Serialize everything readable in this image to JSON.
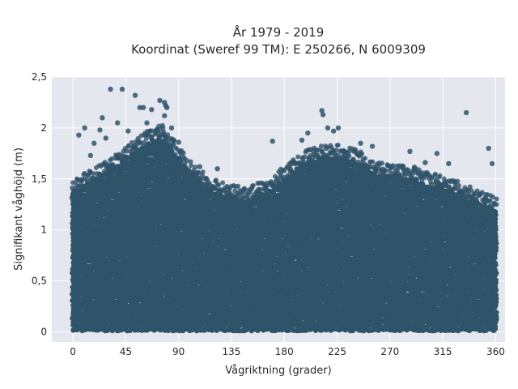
{
  "chart_data": {
    "type": "scatter",
    "title": "År 1979 - 2019",
    "subtitle": "Koordinat (Sweref 99 TM): E 250266, N 6009309",
    "xlabel": "Vågriktning (grader)",
    "ylabel": "Signifikant våghöjd (m)",
    "xlim": [
      -18,
      368
    ],
    "ylim": [
      -0.1,
      2.5
    ],
    "xticks": [
      0,
      45,
      90,
      135,
      180,
      225,
      270,
      315,
      360
    ],
    "xtick_labels": [
      "0",
      "45",
      "90",
      "135",
      "180",
      "225",
      "270",
      "315",
      "360"
    ],
    "yticks": [
      0,
      0.5,
      1,
      1.5,
      2,
      2.5
    ],
    "ytick_labels": [
      "0",
      "0,5",
      "1",
      "1,5",
      "2",
      "2,5"
    ],
    "grid": true,
    "legend": "none",
    "colors": {
      "background": "#e5e7ee",
      "grid": "#ffffff",
      "marker": "#2f5369"
    },
    "dense_envelope": {
      "x": [
        0,
        10,
        20,
        30,
        40,
        50,
        60,
        70,
        75,
        80,
        90,
        100,
        110,
        120,
        135,
        150,
        160,
        170,
        180,
        190,
        200,
        210,
        225,
        240,
        250,
        260,
        270,
        280,
        290,
        300,
        315,
        330,
        340,
        350,
        360
      ],
      "y_max": [
        1.35,
        1.45,
        1.5,
        1.58,
        1.65,
        1.75,
        1.82,
        1.9,
        1.92,
        1.85,
        1.7,
        1.55,
        1.45,
        1.38,
        1.32,
        1.3,
        1.35,
        1.4,
        1.5,
        1.6,
        1.68,
        1.7,
        1.72,
        1.68,
        1.6,
        1.55,
        1.55,
        1.52,
        1.5,
        1.45,
        1.42,
        1.35,
        1.3,
        1.25,
        1.2
      ],
      "y_min": [
        0.02,
        0.02,
        0.02,
        0.02,
        0.02,
        0.02,
        0.02,
        0.02,
        0.02,
        0.02,
        0.02,
        0.02,
        0.02,
        0.02,
        0.02,
        0.02,
        0.02,
        0.02,
        0.02,
        0.02,
        0.02,
        0.02,
        0.02,
        0.02,
        0.02,
        0.02,
        0.02,
        0.02,
        0.02,
        0.02,
        0.02,
        0.02,
        0.02,
        0.02,
        0.02
      ]
    },
    "outliers": {
      "x": [
        32,
        42,
        53,
        57,
        60,
        67,
        74,
        78,
        79,
        80,
        78,
        25,
        10,
        5,
        47,
        23,
        38,
        63,
        84,
        212,
        213,
        217,
        200,
        222,
        226,
        255,
        287,
        310,
        335,
        354,
        357,
        18,
        170,
        28,
        86,
        90,
        108,
        15,
        123,
        195,
        245,
        300,
        320
      ],
      "y": [
        2.38,
        2.38,
        2.32,
        2.2,
        2.2,
        2.18,
        2.27,
        2.25,
        2.22,
        2.2,
        2.12,
        2.1,
        2.0,
        1.93,
        1.97,
        1.98,
        2.05,
        2.05,
        2.0,
        2.17,
        2.13,
        2.0,
        1.95,
        1.97,
        2.0,
        1.82,
        1.77,
        1.75,
        2.15,
        1.8,
        1.65,
        1.85,
        1.87,
        1.9,
        1.88,
        1.86,
        1.62,
        1.73,
        1.6,
        1.88,
        1.85,
        1.66,
        1.65
      ]
    }
  }
}
